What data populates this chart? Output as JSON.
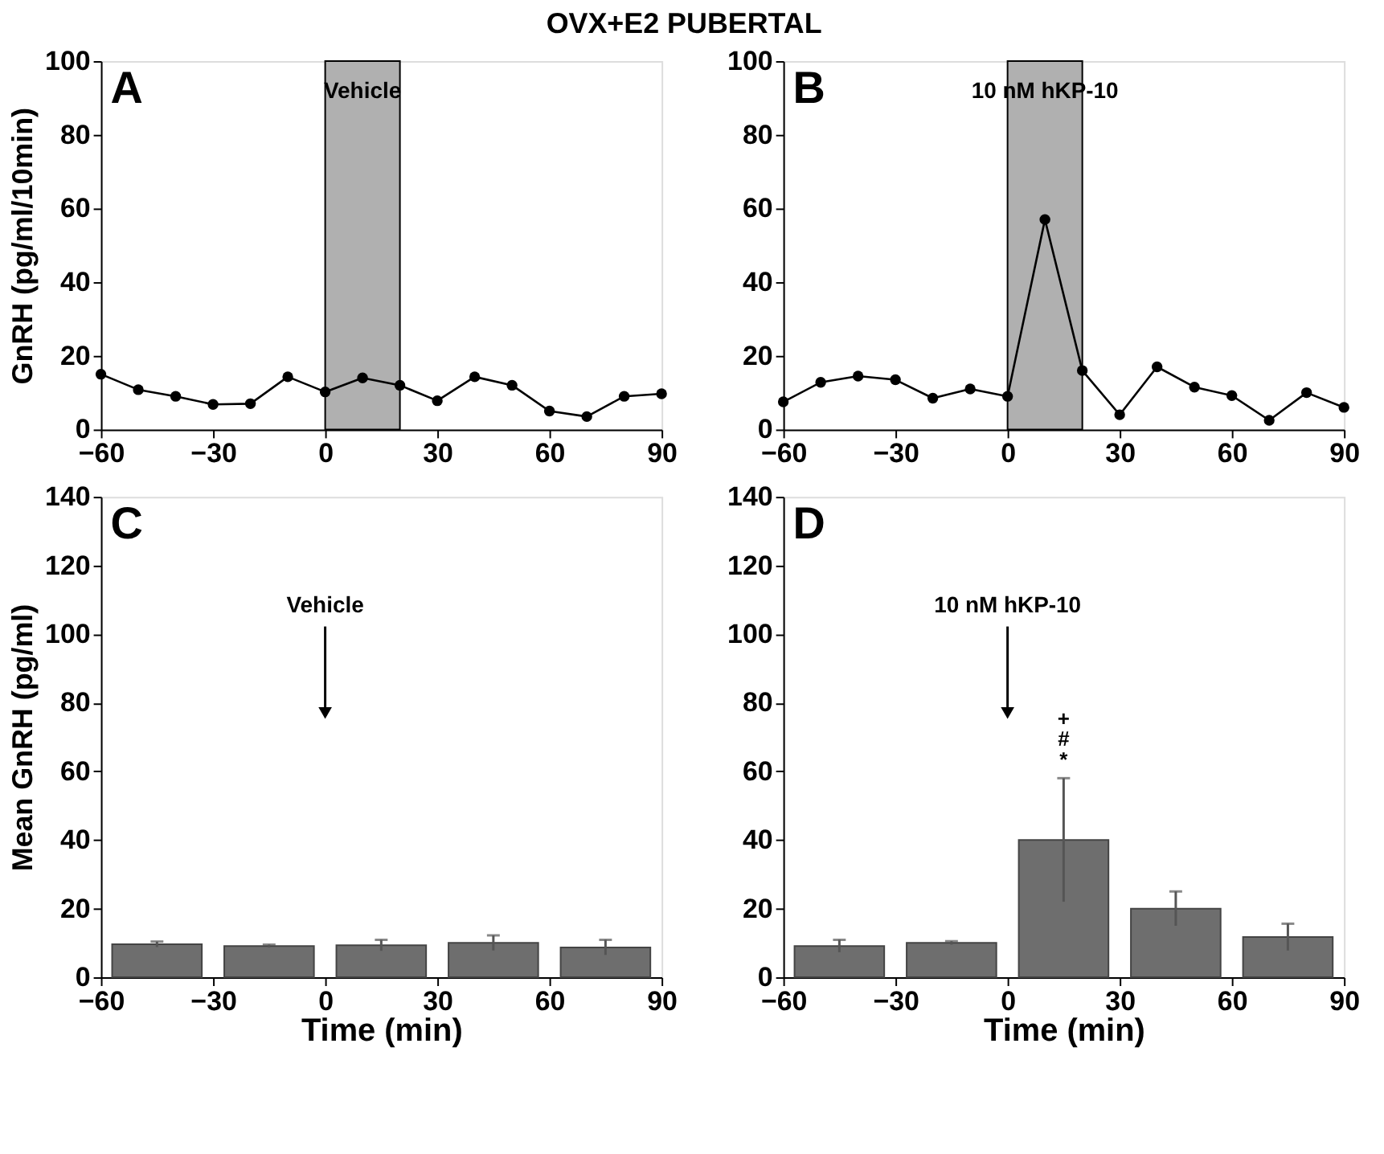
{
  "chart_data": [
    {
      "type": "line",
      "title": "OVX+E2 PUBERTAL",
      "ylabel": "GnRH (pg/ml/10min)",
      "x": [
        -60,
        -50,
        -40,
        -30,
        -20,
        -10,
        0,
        10,
        20,
        30,
        40,
        50,
        60,
        70,
        80,
        90
      ],
      "series": [
        {
          "color": "#000000",
          "values": [
            15,
            10.8,
            9,
            6.8,
            7,
            14.3,
            10.2,
            14,
            12,
            7.8,
            14.3,
            12,
            5,
            3.5,
            9,
            9.7
          ]
        }
      ],
      "marker": "circle",
      "line_style": "solid",
      "xlim": [
        -60,
        90
      ],
      "xticks": [
        -60,
        -30,
        0,
        30,
        60,
        90
      ],
      "ylim": [
        0,
        100
      ],
      "yticks": [
        0,
        20,
        40,
        60,
        80,
        100
      ],
      "bands": [
        {
          "axis": "x",
          "from": 0,
          "to": 20,
          "label": "Vehicle",
          "color": "#b0b0b0"
        }
      ],
      "annotations": [
        "A"
      ],
      "grid": false
    },
    {
      "type": "line",
      "x": [
        -60,
        -50,
        -40,
        -30,
        -20,
        -10,
        0,
        10,
        20,
        30,
        40,
        50,
        60,
        70,
        80,
        90
      ],
      "series": [
        {
          "color": "#000000",
          "values": [
            7.5,
            12.8,
            14.5,
            13.5,
            8.5,
            11,
            9,
            57,
            16,
            4,
            17,
            11.5,
            9.2,
            2.5,
            10,
            6
          ]
        }
      ],
      "marker": "circle",
      "line_style": "solid",
      "xlim": [
        -60,
        90
      ],
      "xticks": [
        -60,
        -30,
        0,
        30,
        60,
        90
      ],
      "ylim": [
        0,
        100
      ],
      "yticks": [
        0,
        20,
        40,
        60,
        80,
        100
      ],
      "bands": [
        {
          "axis": "x",
          "from": 0,
          "to": 20,
          "label": "10 nM hKP-10",
          "color": "#b0b0b0"
        }
      ],
      "annotations": [
        "B"
      ],
      "grid": false
    },
    {
      "type": "bar",
      "xlabel": "Time (min)",
      "ylabel": "Mean GnRH (pg/ml)",
      "x": [
        -45,
        -15,
        15,
        45,
        75
      ],
      "series": [
        {
          "color": "#6e6e6e",
          "values": [
            9.6,
            9.1,
            9.3,
            10,
            8.7
          ],
          "errors": [
            0.8,
            0.4,
            1.6,
            2.2,
            2.2
          ]
        }
      ],
      "xlim": [
        -60,
        90
      ],
      "xticks": [
        -60,
        -30,
        0,
        30,
        60,
        90
      ],
      "ylim": [
        0,
        140
      ],
      "yticks": [
        0,
        20,
        40,
        60,
        80,
        100,
        120,
        140
      ],
      "annotations": [
        "C",
        "Vehicle"
      ],
      "grid": false
    },
    {
      "type": "bar",
      "xlabel": "Time (min)",
      "x": [
        -45,
        -15,
        15,
        45,
        75
      ],
      "series": [
        {
          "color": "#6e6e6e",
          "values": [
            9.1,
            10,
            40,
            20,
            11.7
          ],
          "errors": [
            1.8,
            0.5,
            18,
            5,
            3.9
          ]
        }
      ],
      "xlim": [
        -60,
        90
      ],
      "xticks": [
        -60,
        -30,
        0,
        30,
        60,
        90
      ],
      "ylim": [
        0,
        140
      ],
      "yticks": [
        0,
        20,
        40,
        60,
        80,
        100,
        120,
        140
      ],
      "annotations": [
        "D",
        "10 nM hKP-10",
        "*",
        "#",
        "+"
      ],
      "grid": false
    }
  ]
}
